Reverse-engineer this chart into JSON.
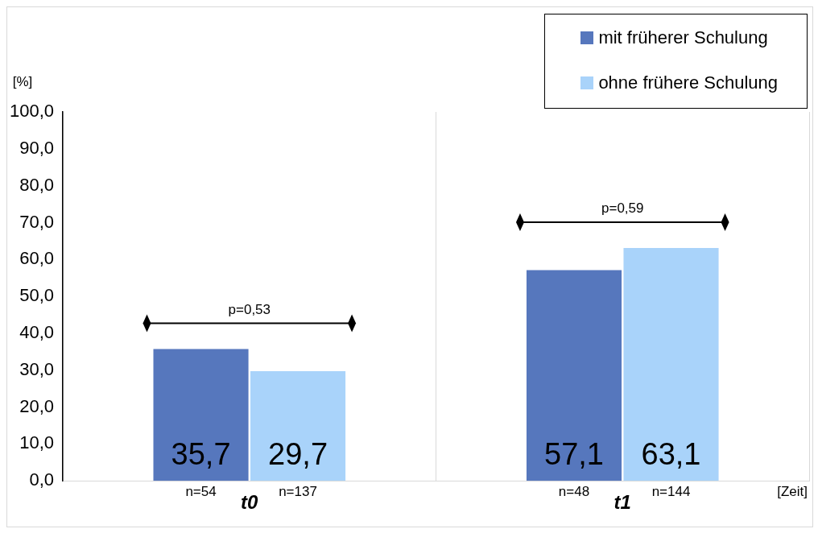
{
  "chart_data": {
    "type": "bar",
    "xlabel": "[Zeit]",
    "ylabel": "[%]",
    "categories": [
      "t0",
      "t1"
    ],
    "series": [
      {
        "name": "mit früherer Schulung",
        "color": "#5677bd",
        "values": [
          35.7,
          57.1
        ],
        "value_labels": [
          "35,7",
          "57,1"
        ]
      },
      {
        "name": "ohne frühere Schulung",
        "color": "#a9d3fa",
        "values": [
          29.7,
          63.1
        ],
        "value_labels": [
          "29,7",
          "63,1"
        ]
      }
    ],
    "ylim": [
      0,
      100
    ],
    "yticks": [
      {
        "value": 0,
        "label": "0,0"
      },
      {
        "value": 10,
        "label": "10,0"
      },
      {
        "value": 20,
        "label": "20,0"
      },
      {
        "value": 30,
        "label": "30,0"
      },
      {
        "value": 40,
        "label": "40,0"
      },
      {
        "value": 50,
        "label": "50,0"
      },
      {
        "value": 60,
        "label": "60,0"
      },
      {
        "value": 70,
        "label": "70,0"
      },
      {
        "value": 80,
        "label": "80,0"
      },
      {
        "value": 90,
        "label": "90,0"
      },
      {
        "value": 100,
        "label": "100,0"
      }
    ],
    "grid": "x",
    "legend": "top right",
    "annotations": [
      "p=0,53",
      "p=0,59",
      "n=54",
      "n=137",
      "n=48",
      "n=144"
    ]
  }
}
